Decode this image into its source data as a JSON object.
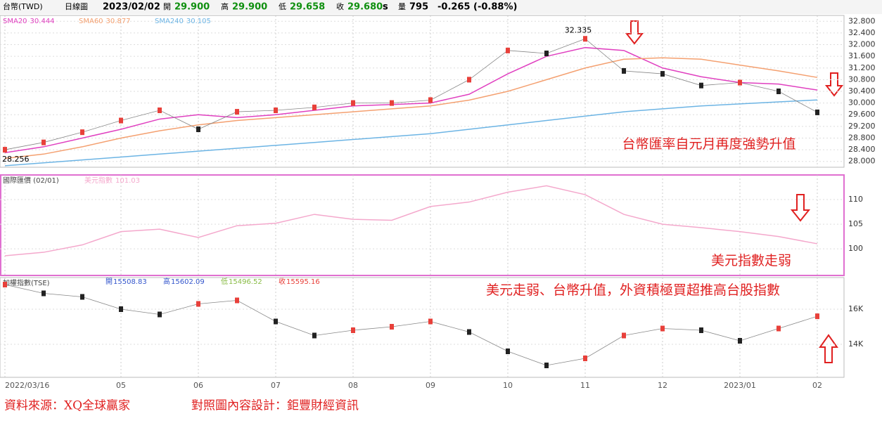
{
  "header": {
    "symbol": "台幣(TWD)",
    "period": "日線圖",
    "date": "2023/02/02",
    "quote": [
      {
        "label": "開",
        "value": "29.900"
      },
      {
        "label": "高",
        "value": "29.900"
      },
      {
        "label": "低",
        "value": "29.658"
      },
      {
        "label": "收",
        "value": "29.680"
      }
    ],
    "flag": "s",
    "volume_label": "量",
    "volume": "795",
    "change": "-0.265 (-0.88%)"
  },
  "chart_data": [
    {
      "type": "line",
      "color": "#e8403a",
      "values": [
        28.4,
        28.65,
        29.0,
        29.4,
        29.75,
        29.1,
        29.7,
        29.75,
        29.85,
        30.0,
        30.0,
        30.1,
        30.8,
        31.8,
        31.7,
        32.2,
        31.1,
        31.0,
        30.6,
        30.7,
        30.4,
        29.68
      ],
      "high_label": 32.335,
      "low_label": 28.256,
      "series": [
        {
          "name": "SMA20",
          "value_label": "30.444",
          "color": "#e040c0",
          "values": [
            28.3,
            28.5,
            28.8,
            29.1,
            29.45,
            29.6,
            29.5,
            29.6,
            29.75,
            29.9,
            29.95,
            30.0,
            30.3,
            31.0,
            31.6,
            31.9,
            31.8,
            31.2,
            30.9,
            30.7,
            30.65,
            30.444
          ]
        },
        {
          "name": "SMA60",
          "value_label": "30.877",
          "color": "#f4a070",
          "values": [
            28.1,
            28.25,
            28.5,
            28.8,
            29.05,
            29.25,
            29.4,
            29.5,
            29.6,
            29.7,
            29.8,
            29.9,
            30.1,
            30.4,
            30.8,
            31.2,
            31.5,
            31.55,
            31.5,
            31.3,
            31.1,
            30.877
          ]
        },
        {
          "name": "SMA240",
          "value_label": "30.105",
          "color": "#6cb4e4",
          "values": [
            27.85,
            27.95,
            28.05,
            28.15,
            28.25,
            28.35,
            28.45,
            28.55,
            28.65,
            28.75,
            28.85,
            28.95,
            29.1,
            29.25,
            29.4,
            29.55,
            29.7,
            29.8,
            29.9,
            29.97,
            30.04,
            30.105
          ]
        }
      ],
      "ylim": [
        27.8,
        33.0
      ],
      "yticks": [
        {
          "value": 28,
          "label": "28.000"
        },
        {
          "value": 28.4,
          "label": "28.400"
        },
        {
          "value": 28.8,
          "label": "28.800"
        },
        {
          "value": 29.2,
          "label": "29.200"
        },
        {
          "value": 29.6,
          "label": "29.600"
        },
        {
          "value": 30,
          "label": "30.000"
        },
        {
          "value": 30.4,
          "label": "30.400"
        },
        {
          "value": 30.8,
          "label": "30.800"
        },
        {
          "value": 31.2,
          "label": "31.200"
        },
        {
          "value": 31.6,
          "label": "31.600"
        },
        {
          "value": 32,
          "label": "32.000"
        },
        {
          "value": 32.4,
          "label": "32.400"
        },
        {
          "value": 32.8,
          "label": "32.800"
        }
      ],
      "note": "台幣匯率自元月再度強勢升值"
    },
    {
      "type": "line",
      "title": "國際匯價 (02/01)",
      "series": [
        {
          "name": "美元指數",
          "value_label": "101.03",
          "color": "#f4a8cc",
          "values": [
            98.6,
            99.3,
            100.8,
            103.5,
            104.0,
            102.3,
            104.7,
            105.2,
            107.0,
            106.0,
            105.8,
            108.6,
            109.5,
            111.5,
            112.8,
            111.0,
            107.0,
            105.0,
            104.3,
            103.5,
            102.5,
            101.03
          ]
        }
      ],
      "ylim": [
        94.6,
        115
      ],
      "yticks": [
        100,
        105,
        110
      ],
      "note": "美元指數走弱"
    },
    {
      "type": "line",
      "title": "加權指數(TSE)",
      "color": "#e8403a",
      "categories": [
        "2022/03/16",
        null,
        null,
        "05",
        null,
        "06",
        null,
        "07",
        null,
        "08",
        null,
        "09",
        null,
        "10",
        null,
        "11",
        null,
        "12",
        null,
        "2023/01",
        null,
        "02"
      ],
      "values": [
        17400,
        16900,
        16700,
        16000,
        15700,
        16300,
        16500,
        15300,
        14500,
        14800,
        15000,
        15300,
        14700,
        13600,
        12800,
        13200,
        14500,
        14900,
        14800,
        14200,
        14900,
        15595.16
      ],
      "ohlc": [
        {
          "label": "開",
          "value": 15508.83,
          "color": "#3355cc"
        },
        {
          "label": "高",
          "value": 15602.09,
          "color": "#3355cc"
        },
        {
          "label": "低",
          "value": 15496.52,
          "color": "#88bb44"
        },
        {
          "label": "收",
          "value": 15595.16,
          "color": "#e8403a"
        }
      ],
      "ylim": [
        12120,
        17800
      ],
      "yticks": [
        {
          "value": 14000,
          "label": "14K"
        },
        {
          "value": 16000,
          "label": "16K"
        }
      ],
      "note": "美元走弱、台幣升值，外資積極買超推高台股指數"
    }
  ],
  "footer": {
    "source": "資料來源：XQ全球贏家",
    "design": "對照圖內容設計：鉅豐財經資訊"
  }
}
